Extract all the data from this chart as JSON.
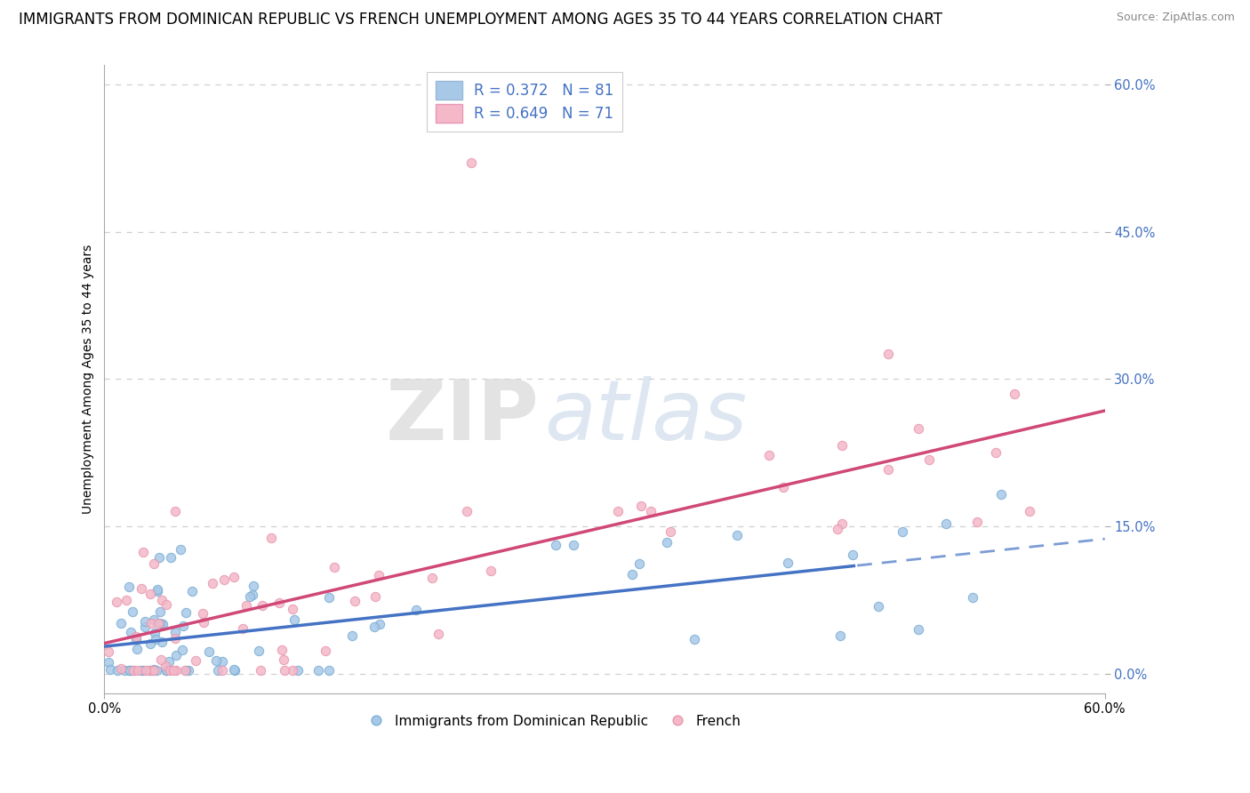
{
  "title": "IMMIGRANTS FROM DOMINICAN REPUBLIC VS FRENCH UNEMPLOYMENT AMONG AGES 35 TO 44 YEARS CORRELATION CHART",
  "source": "Source: ZipAtlas.com",
  "watermark_zip": "ZIP",
  "watermark_atlas": "atlas",
  "ylabel": "Unemployment Among Ages 35 to 44 years",
  "ytick_values": [
    0.0,
    15.0,
    30.0,
    45.0,
    60.0
  ],
  "xmin": 0.0,
  "xmax": 60.0,
  "ymin": -2.0,
  "ymax": 62.0,
  "blue_R": "0.372",
  "blue_N": "81",
  "pink_R": "0.649",
  "pink_N": "71",
  "blue_color": "#a8c8e8",
  "pink_color": "#f4b8c8",
  "blue_edge": "#7aaed4",
  "pink_edge": "#e898b0",
  "blue_line_color": "#4472c4",
  "pink_line_color": "#d04878",
  "grid_color": "#d0d0d0",
  "blue_label": "Immigrants from Dominican Republic",
  "pink_label": "French",
  "title_fontsize": 12,
  "axis_label_fontsize": 10,
  "tick_fontsize": 10.5,
  "legend_fontsize": 12,
  "source_fontsize": 9,
  "ytick_color": "#4472c4"
}
